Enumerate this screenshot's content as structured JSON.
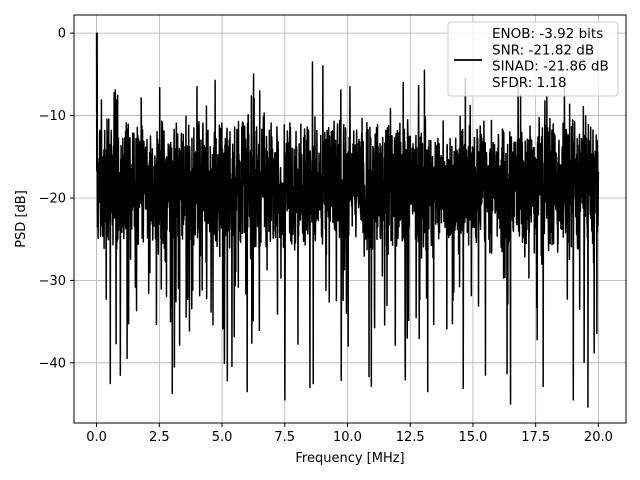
{
  "chart_data": {
    "type": "line",
    "xlabel": "Frequency [MHz]",
    "ylabel": "PSD [dB]",
    "xlim": [
      -0.9,
      21.1
    ],
    "ylim": [
      -47.3,
      2.2
    ],
    "xticks": [
      0.0,
      2.5,
      5.0,
      7.5,
      10.0,
      12.5,
      15.0,
      17.5,
      20.0
    ],
    "xtick_labels": [
      "0.0",
      "2.5",
      "5.0",
      "7.5",
      "10.0",
      "12.5",
      "15.0",
      "17.5",
      "20.0"
    ],
    "yticks": [
      0,
      -10,
      -20,
      -30,
      -40
    ],
    "ytick_labels": [
      "0",
      "−10",
      "−20",
      "−30",
      "−40"
    ],
    "grid": true,
    "legend_position": "top-right",
    "series": [
      {
        "name": "ENOB: -3.92 bits\nSNR: -21.82 dB\nSINAD: -21.86 dB\nSFDR: 1.18",
        "legend_lines": [
          "ENOB: -3.92 bits",
          "SNR: -21.82 dB",
          "SINAD: -21.86 dB",
          "SFDR: 1.18"
        ],
        "color": "#000000",
        "x_start": 0.0,
        "x_end": 20.0,
        "noise_floor_mean": -18.5,
        "peaks": [
          {
            "x": 0.02,
            "y": 0.0
          },
          {
            "x": 0.12,
            "y": -12.0
          },
          {
            "x": 8.6,
            "y": -3.5
          },
          {
            "x": 14.7,
            "y": -5.5
          },
          {
            "x": 10.1,
            "y": -6.5
          },
          {
            "x": 4.0,
            "y": -6.5
          },
          {
            "x": 6.5,
            "y": -7.0
          },
          {
            "x": 16.9,
            "y": -7.5
          }
        ],
        "dips": [
          {
            "x": 0.55,
            "y": -42.5
          },
          {
            "x": 0.95,
            "y": -41.5
          },
          {
            "x": 6.0,
            "y": -43.5
          },
          {
            "x": 7.5,
            "y": -44.5
          },
          {
            "x": 8.5,
            "y": -43.0
          },
          {
            "x": 13.2,
            "y": -43.5
          },
          {
            "x": 16.5,
            "y": -45.0
          },
          {
            "x": 19.0,
            "y": -44.5
          },
          {
            "x": 12.3,
            "y": -40.0
          },
          {
            "x": 3.1,
            "y": -40.5
          }
        ]
      }
    ]
  }
}
